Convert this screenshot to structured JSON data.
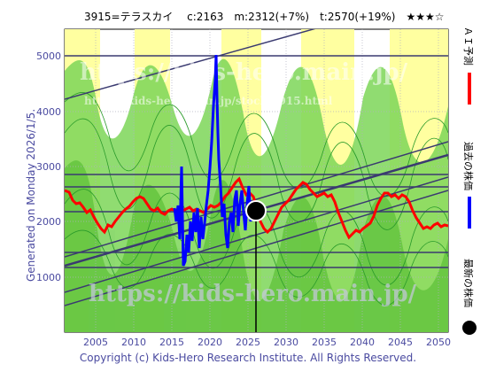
{
  "header": {
    "title": "3915=テラスカイ　 c:2163　m:2312(+7%)　t:2570(+19%)　★★★☆",
    "generated": "Generated on Monday 2026/1/5.",
    "copyright": "Copyright (c) Kids-Hero Research Institute. All Rights Reserved."
  },
  "legend": {
    "forecast": "ＡＩ予測",
    "past": "過去の株価",
    "latest": "最新の株価"
  },
  "watermark": {
    "line1": "https://kids-hero.main.jp/",
    "line2": "https://kids-hero.main.jp/stock/3915.html"
  },
  "colors": {
    "forecast": "#ff0000",
    "past": "#0000ff",
    "latest": "#000000",
    "bands_green": "#66cc33",
    "bands_yellow": "#ffff99",
    "trend_lines": "#3a3a70",
    "axis_text": "#4a4aa0"
  }
}
